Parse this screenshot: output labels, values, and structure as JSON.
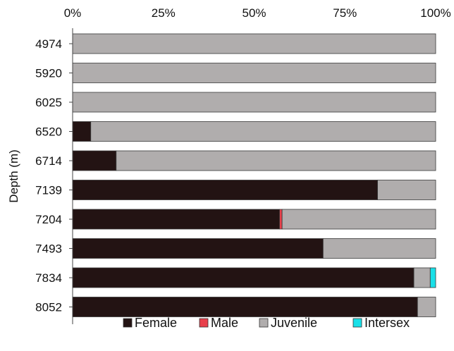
{
  "chart_data": {
    "type": "bar",
    "orientation": "horizontal",
    "stacked": "percent",
    "ylabel": "Depth (m)",
    "xlabel": "",
    "x_axis_position": "top",
    "xlim": [
      0,
      100
    ],
    "x_ticks": [
      "0%",
      "25%",
      "50%",
      "75%",
      "100%"
    ],
    "categories": [
      "4974",
      "5920",
      "6025",
      "6520",
      "6714",
      "7139",
      "7204",
      "7493",
      "7834",
      "8052"
    ],
    "series": [
      {
        "name": "Female",
        "color": "#231313",
        "values": [
          0,
          0,
          0,
          5,
          12,
          84,
          57,
          69,
          94,
          95
        ]
      },
      {
        "name": "Male",
        "color": "#e8404b",
        "values": [
          0,
          0,
          0,
          0,
          0,
          0,
          0.7,
          0,
          0,
          0
        ]
      },
      {
        "name": "Juvenile",
        "color": "#b0adad",
        "values": [
          100,
          100,
          100,
          95,
          88,
          16,
          42.3,
          31,
          4.5,
          5
        ]
      },
      {
        "name": "Intersex",
        "color": "#19e0e8",
        "values": [
          0,
          0,
          0,
          0,
          0,
          0,
          0,
          0,
          1.5,
          0
        ]
      }
    ],
    "legend": "bottom",
    "grid": false
  }
}
